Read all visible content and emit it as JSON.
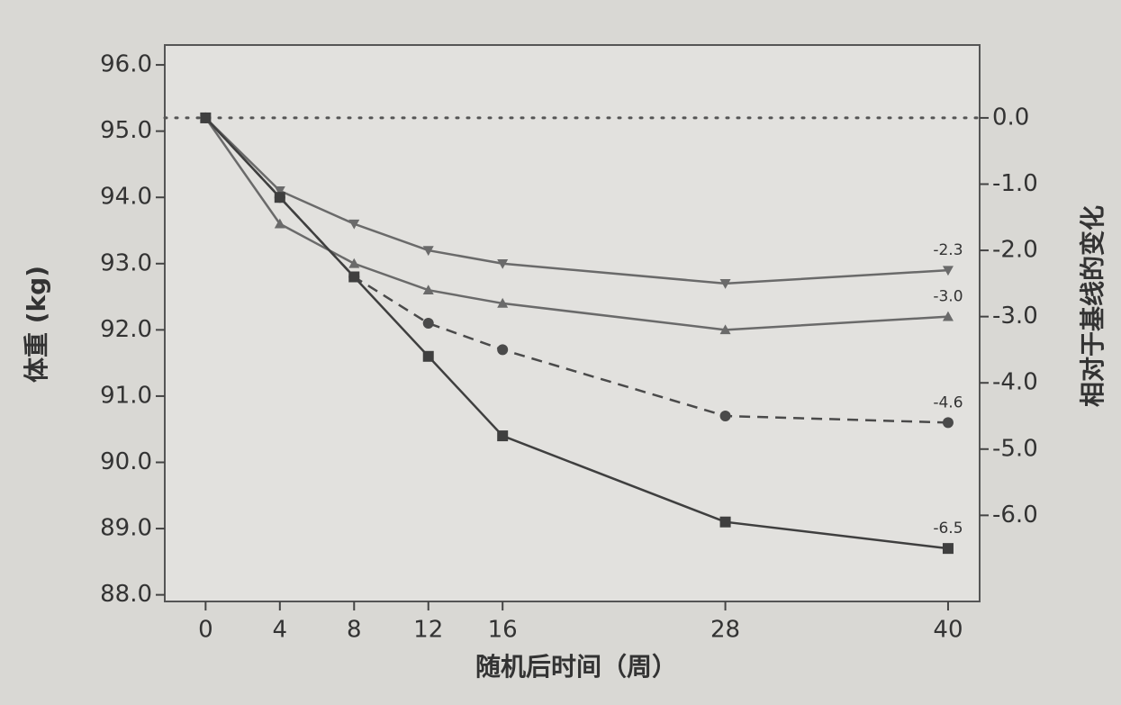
{
  "chart_data": {
    "type": "line",
    "x_label": "随机后时间（周）",
    "y_label": "体重 (kg)",
    "y2_label": "相对于基线的变化",
    "x": [
      0,
      4,
      8,
      12,
      16,
      28,
      40
    ],
    "xlim": [
      -2.2,
      41.7
    ],
    "xticks": [
      0,
      4,
      8,
      12,
      16,
      28,
      40
    ],
    "ylim": [
      87.9,
      96.3
    ],
    "yticks": [
      {
        "value": 88,
        "label": "88.0"
      },
      {
        "value": 89,
        "label": "89.0"
      },
      {
        "value": 90,
        "label": "90.0"
      },
      {
        "value": 91,
        "label": "91.0"
      },
      {
        "value": 92,
        "label": "92.0"
      },
      {
        "value": 93,
        "label": "93.0"
      },
      {
        "value": 94,
        "label": "94.0"
      },
      {
        "value": 95,
        "label": "95.0"
      },
      {
        "value": 96,
        "label": "96.0"
      }
    ],
    "y2lim": [
      -7.3,
      1.1
    ],
    "y2ticks": [
      {
        "value": 0,
        "label": "0.0"
      },
      {
        "value": -1,
        "label": "-1.0"
      },
      {
        "value": -2,
        "label": "-2.0"
      },
      {
        "value": -3,
        "label": "-3.0"
      },
      {
        "value": -4,
        "label": "-4.0"
      },
      {
        "value": -5,
        "label": "-5.0"
      },
      {
        "value": -6,
        "label": "-6.0"
      }
    ],
    "baseline_dotted": true,
    "series": [
      {
        "color": "#6a6a6a",
        "marker": "v",
        "dash": false,
        "axis": "y2",
        "values": [
          0,
          -1.1,
          -1.6,
          -2.0,
          -2.2,
          -2.5,
          -2.3
        ],
        "value_labels": [
          null,
          null,
          null,
          null,
          null,
          null,
          "-2.3"
        ]
      },
      {
        "color": "#6a6a6a",
        "marker": "^",
        "dash": false,
        "axis": "y2",
        "values": [
          0,
          -1.6,
          -2.2,
          -2.6,
          -2.8,
          -3.2,
          -3.0
        ],
        "value_labels": [
          null,
          null,
          null,
          null,
          null,
          null,
          "-3.0"
        ]
      },
      {
        "color": "#4a4a4a",
        "marker": "o",
        "dash": true,
        "axis": "y2",
        "values": [
          0,
          -1.2,
          -2.4,
          -3.1,
          -3.5,
          -4.5,
          -4.6
        ],
        "value_labels": [
          null,
          null,
          null,
          null,
          null,
          null,
          "-4.6"
        ]
      },
      {
        "color": "#3f3f3f",
        "marker": "s",
        "dash": false,
        "axis": "y2",
        "values": [
          0,
          -1.2,
          -2.4,
          -3.6,
          -4.8,
          -6.1,
          -6.5
        ],
        "value_labels": [
          null,
          null,
          null,
          null,
          null,
          null,
          "-6.5"
        ]
      }
    ]
  }
}
